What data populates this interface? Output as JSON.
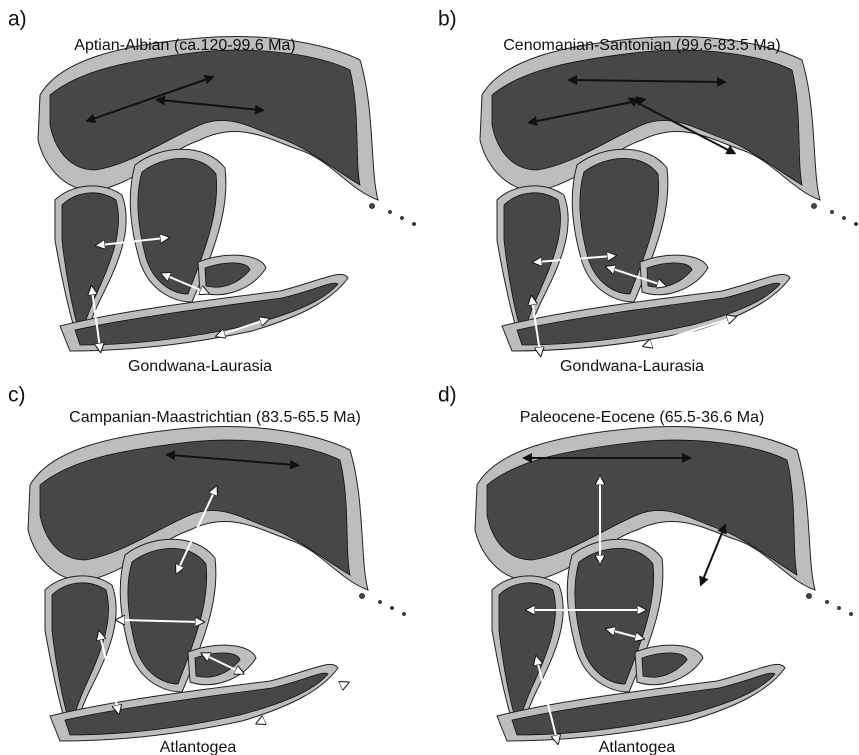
{
  "panels": [
    {
      "letter": "a)",
      "title": "Aptian-Albian (ca.120-99.6 Ma)",
      "caption": "Gondwana-Laurasia"
    },
    {
      "letter": "b)",
      "title": "Cenomanian-Santonian (99.6-83.5 Ma)",
      "caption": "Gondwana-Laurasia"
    },
    {
      "letter": "c)",
      "title": "Campanian-Maastrichtian (83.5-65.5 Ma)",
      "caption": "Atlantogea"
    },
    {
      "letter": "d)",
      "title": "Paleocene-Eocene (65.5-36.6 Ma)",
      "caption": "Atlantogea"
    }
  ]
}
